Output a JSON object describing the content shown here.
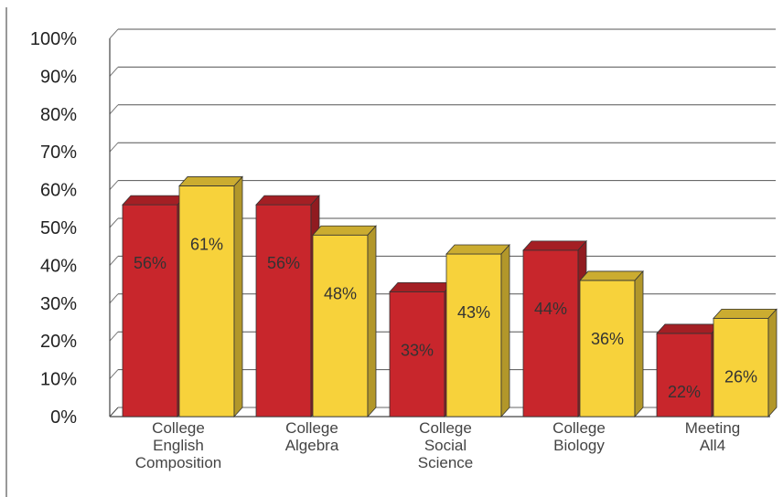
{
  "chart_data": {
    "type": "bar",
    "title": "",
    "xlabel": "",
    "ylabel": "",
    "ylim": [
      0,
      100
    ],
    "y_ticks": [
      "0%",
      "10%",
      "20%",
      "30%",
      "40%",
      "50%",
      "60%",
      "70%",
      "80%",
      "90%",
      "100%"
    ],
    "categories": [
      [
        "College",
        "English",
        "Composition"
      ],
      [
        "College",
        "Algebra"
      ],
      [
        "College",
        "Social",
        "Science"
      ],
      [
        "College",
        "Biology"
      ],
      [
        "Meeting",
        "All4"
      ]
    ],
    "series": [
      {
        "values": [
          56,
          56,
          33,
          44,
          22
        ],
        "labels": [
          "56%",
          "56%",
          "33%",
          "44%",
          "22%"
        ],
        "color": "#c8262c"
      },
      {
        "values": [
          61,
          48,
          43,
          36,
          26
        ],
        "labels": [
          "61%",
          "48%",
          "43%",
          "36%",
          "26%"
        ],
        "color": "#f7d23b"
      }
    ],
    "grid": true,
    "legend": "none"
  }
}
